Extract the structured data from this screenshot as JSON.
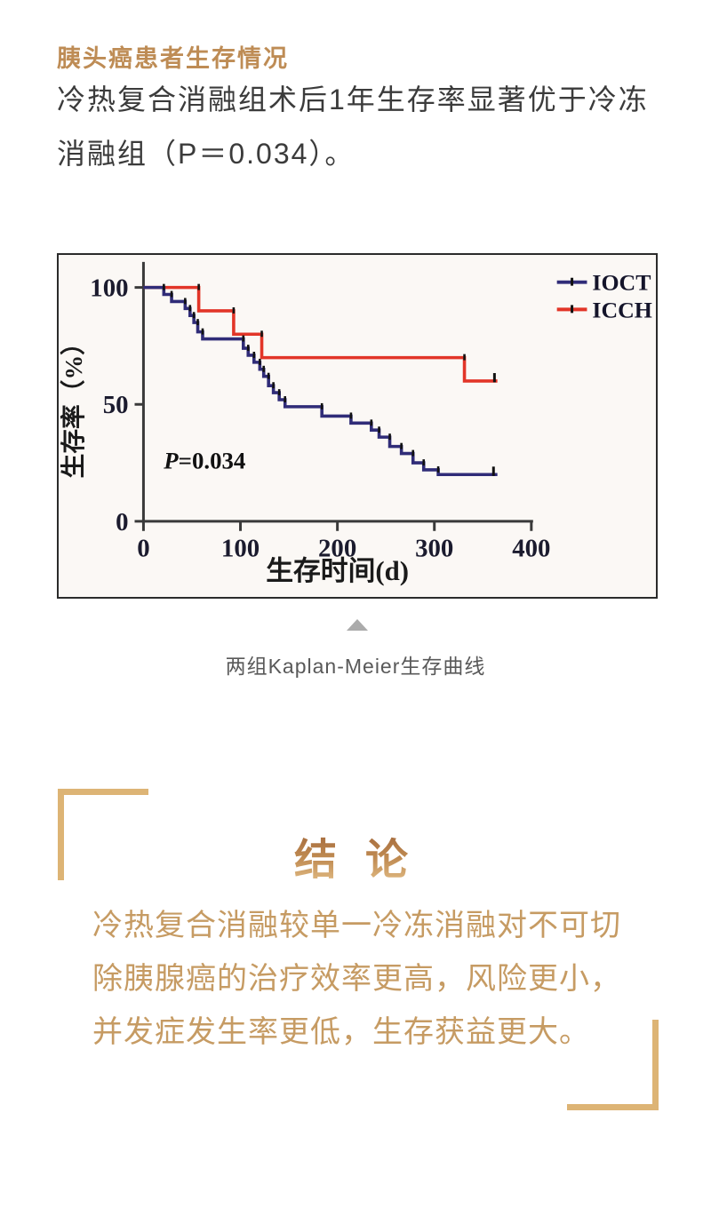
{
  "page": {
    "section_title": "胰头癌患者生存情况",
    "intro_text": "冷热复合消融组术后1年生存率显著优于冷冻消融组（P＝0.034）。",
    "figure_caption": "两组Kaplan-Meier生存曲线",
    "conclusion": {
      "title": "结 论",
      "body": "冷热复合消融较单一冷冻消融对不可切除胰腺癌的治疗效率更高，风险更小，并发症发生率更低，生存获益更大。"
    },
    "colors": {
      "accent_gold": "#BE8C55",
      "bracket_gold": "#DDB475",
      "conclusion_text": "#C69B63",
      "body_text": "#3B3B3B",
      "caption_gray": "#595959",
      "triangle_gray": "#ABABAB"
    }
  },
  "chart_data": {
    "type": "line",
    "subtype": "kaplan-meier-step",
    "title": "",
    "xlabel": "生存时间(d)",
    "ylabel": "生存率（%）",
    "xlim": [
      0,
      400
    ],
    "ylim": [
      0,
      100
    ],
    "xticks": [
      0,
      100,
      200,
      300,
      400
    ],
    "yticks": [
      0,
      50,
      100
    ],
    "grid": false,
    "legend_position": "top-right",
    "annotation": {
      "italic": "P",
      "rest": "=0.034"
    },
    "frame_bg": "#FBF8F5",
    "frame_border": "#2B2B2B",
    "axis_color": "#3A3A3A",
    "label_color": "#1B1B2E",
    "censor_color": "#111111",
    "series": [
      {
        "name": "IOCT",
        "color": "#302C78",
        "steps": [
          [
            0,
            100
          ],
          [
            21,
            97
          ],
          [
            29,
            94
          ],
          [
            43,
            91
          ],
          [
            48,
            88
          ],
          [
            52,
            85
          ],
          [
            56,
            81
          ],
          [
            61,
            78
          ],
          [
            103,
            74
          ],
          [
            108,
            71
          ],
          [
            114,
            68
          ],
          [
            120,
            65
          ],
          [
            124,
            62
          ],
          [
            129,
            58
          ],
          [
            134,
            55
          ],
          [
            140,
            52
          ],
          [
            146,
            49
          ],
          [
            184,
            45
          ],
          [
            214,
            42
          ],
          [
            235,
            39
          ],
          [
            243,
            36
          ],
          [
            254,
            32
          ],
          [
            266,
            29
          ],
          [
            278,
            25
          ],
          [
            289,
            22
          ],
          [
            304,
            20
          ],
          [
            365,
            20
          ]
        ],
        "censor": [
          361,
          20
        ]
      },
      {
        "name": "ICCH",
        "color": "#E23528",
        "steps": [
          [
            0,
            100
          ],
          [
            57,
            90
          ],
          [
            93,
            80
          ],
          [
            122,
            70
          ],
          [
            331,
            60
          ],
          [
            365,
            60
          ]
        ],
        "censor": [
          362,
          60
        ]
      }
    ]
  }
}
